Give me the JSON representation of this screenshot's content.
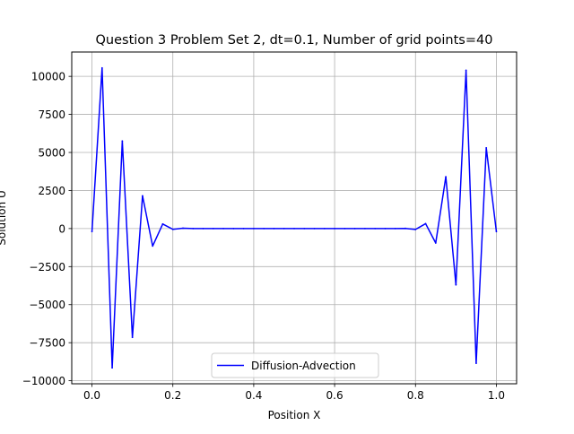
{
  "chart_data": {
    "type": "line",
    "title": "Question 3 Problem Set 2, dt=0.1, Number of grid points=40",
    "xlabel": "Position X",
    "ylabel": "Solution U",
    "xlim": [
      -0.05,
      1.05
    ],
    "ylim": [
      -10200,
      11600
    ],
    "x_ticks": [
      0.0,
      0.2,
      0.4,
      0.6,
      0.8,
      1.0
    ],
    "x_tick_labels": [
      "0.0",
      "0.2",
      "0.4",
      "0.6",
      "0.8",
      "1.0"
    ],
    "y_ticks": [
      -10000,
      -7500,
      -5000,
      -2500,
      0,
      2500,
      5000,
      7500,
      10000
    ],
    "y_tick_labels": [
      "−10000",
      "−7500",
      "−5000",
      "−2500",
      "0",
      "2500",
      "5000",
      "7500",
      "10000"
    ],
    "grid": true,
    "legend_position": "lower center",
    "series": [
      {
        "name": "Diffusion-Advection",
        "color": "#0000ff",
        "x": [
          0.0,
          0.025,
          0.05,
          0.075,
          0.1,
          0.125,
          0.15,
          0.175,
          0.2,
          0.225,
          0.25,
          0.275,
          0.3,
          0.325,
          0.35,
          0.375,
          0.4,
          0.425,
          0.45,
          0.475,
          0.5,
          0.525,
          0.55,
          0.575,
          0.6,
          0.625,
          0.65,
          0.675,
          0.7,
          0.725,
          0.75,
          0.775,
          0.8,
          0.825,
          0.85,
          0.875,
          0.9,
          0.925,
          0.95,
          0.975,
          1.0
        ],
        "y": [
          -200,
          10550,
          -9150,
          5750,
          -7150,
          2150,
          -1150,
          300,
          -50,
          20,
          0,
          0,
          0,
          0,
          0,
          0,
          0,
          0,
          0,
          0,
          0,
          0,
          0,
          0,
          0,
          0,
          0,
          0,
          0,
          0,
          0,
          10,
          -60,
          320,
          -950,
          3400,
          -3700,
          10400,
          -8850,
          5300,
          -200
        ]
      }
    ]
  }
}
